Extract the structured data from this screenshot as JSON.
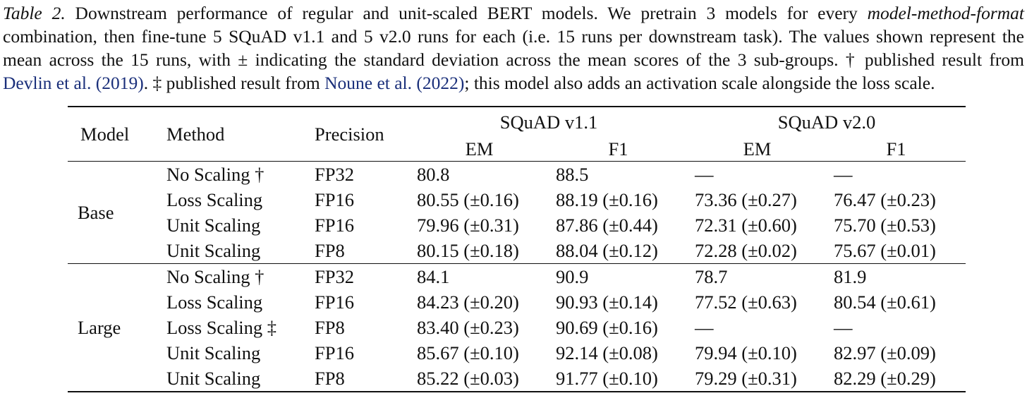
{
  "caption": {
    "label": "Table 2.",
    "line1_a": " Downstream performance of regular and unit-scaled BERT models.  We pretrain 3 models for every ",
    "line1_italic": "model-method-format",
    "line2": "combination, then fine-tune 5 SQuAD v1.1 and 5 v2.0 runs for each (i.e. 15 runs per downstream task). The values shown represent the",
    "line3": "mean across the 15 runs, with ± indicating the standard deviation across the mean scores of the 3 sub-groups. † published result from",
    "line4_cite1": "Devlin et al. (2019)",
    "line4_mid": ". ‡ published result from ",
    "line4_cite2": "Noune et al. (2022)",
    "line4_end": "; this model also adds an activation scale alongside the loss scale."
  },
  "table": {
    "headers": {
      "model": "Model",
      "method": "Method",
      "precision": "Precision",
      "squad11": "SQuAD v1.1",
      "squad20": "SQuAD v2.0",
      "em": "EM",
      "f1": "F1"
    },
    "groups": [
      {
        "model": "Base",
        "rows": [
          {
            "method": "No Scaling †",
            "precision": "FP32",
            "v11_em": "80.8",
            "v11_f1": "88.5",
            "v20_em": "—",
            "v20_f1": "—"
          },
          {
            "method": "Loss Scaling",
            "precision": "FP16",
            "v11_em": "80.55 (±0.16)",
            "v11_f1": "88.19 (±0.16)",
            "v20_em": "73.36 (±0.27)",
            "v20_f1": "76.47 (±0.23)"
          },
          {
            "method": "Unit Scaling",
            "precision": "FP16",
            "v11_em": "79.96 (±0.31)",
            "v11_f1": "87.86 (±0.44)",
            "v20_em": "72.31 (±0.60)",
            "v20_f1": "75.70 (±0.53)"
          },
          {
            "method": "Unit Scaling",
            "precision": "FP8",
            "v11_em": "80.15 (±0.18)",
            "v11_f1": "88.04 (±0.12)",
            "v20_em": "72.28 (±0.02)",
            "v20_f1": "75.67 (±0.01)"
          }
        ]
      },
      {
        "model": "Large",
        "rows": [
          {
            "method": "No Scaling †",
            "precision": "FP32",
            "v11_em": "84.1",
            "v11_f1": "90.9",
            "v20_em": "78.7",
            "v20_f1": "81.9"
          },
          {
            "method": "Loss Scaling",
            "precision": "FP16",
            "v11_em": "84.23 (±0.20)",
            "v11_f1": "90.93 (±0.14)",
            "v20_em": "77.52 (±0.63)",
            "v20_f1": "80.54 (±0.61)"
          },
          {
            "method": "Loss Scaling ‡",
            "precision": "FP8",
            "v11_em": "83.40 (±0.23)",
            "v11_f1": "90.69 (±0.16)",
            "v20_em": "—",
            "v20_f1": "—"
          },
          {
            "method": "Unit Scaling",
            "precision": "FP16",
            "v11_em": "85.67 (±0.10)",
            "v11_f1": "92.14 (±0.08)",
            "v20_em": "79.94 (±0.10)",
            "v20_f1": "82.97 (±0.09)"
          },
          {
            "method": "Unit Scaling",
            "precision": "FP8",
            "v11_em": "85.22 (±0.03)",
            "v11_f1": "91.77 (±0.10)",
            "v20_em": "79.29 (±0.31)",
            "v20_f1": "82.29 (±0.29)"
          }
        ]
      }
    ]
  }
}
